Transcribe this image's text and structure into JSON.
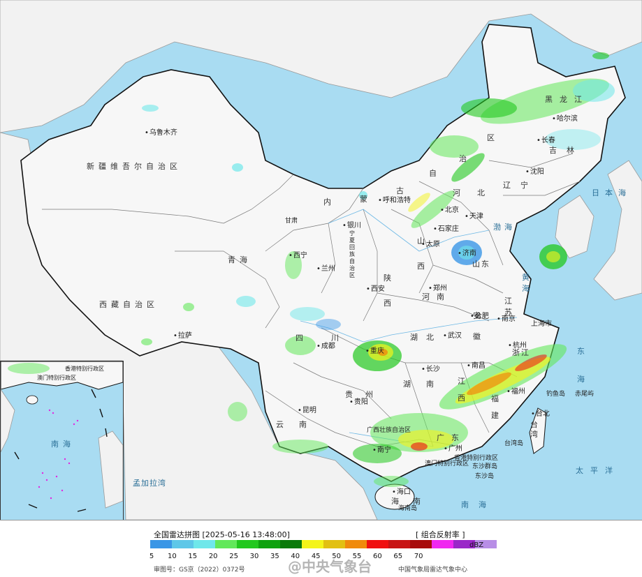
{
  "legend": {
    "title": "全国雷达拼图 [2025-05-16 13:48:00]",
    "product": "[ 组合反射率 ]",
    "unit": "dBZ",
    "tick_labels": [
      "5",
      "10",
      "15",
      "20",
      "25",
      "30",
      "35",
      "40",
      "45",
      "50",
      "55",
      "60",
      "65",
      "70"
    ],
    "colors": [
      "#3a96e6",
      "#5ec7e8",
      "#6fe7ea",
      "#62e85a",
      "#22c81e",
      "#0ea20e",
      "#0a7a0a",
      "#f4f41a",
      "#e2c012",
      "#f08a0c",
      "#f01010",
      "#c81414",
      "#a80c0c",
      "#f028f0",
      "#9a28c8",
      "#b88ee6"
    ],
    "approval_no": "审图号：GS京（2022）0372号",
    "provider": "中国气象局雷达气象中心",
    "watermark": "@中央气象台"
  },
  "labels": {
    "urumqi": "乌鲁木齐",
    "xinjiang": "新疆维吾尔自治区",
    "tibet": "西藏自治区",
    "lhasa": "拉萨",
    "qinghai": "青海",
    "xining": "西宁",
    "gansu": "甘肃",
    "lanzhou": "兰州",
    "ningxia": "宁夏回族自治区",
    "yinchuan": "银川",
    "inner_mongolia_1": "内",
    "inner_mongolia_2": "蒙",
    "inner_mongolia_3": "古",
    "inner_mongolia_4": "自",
    "inner_mongolia_5": "治",
    "inner_mongolia_6": "区",
    "hohhot": "呼和浩特",
    "heilongjiang": "黑龙江",
    "harbin": "哈尔滨",
    "jilin": "吉林",
    "changchun": "长春",
    "liaoning": "辽宁",
    "shenyang": "沈阳",
    "beijing": "北京",
    "tianjin": "天津",
    "hebei": "河北",
    "shijiazhuang": "石家庄",
    "shanxi": "山西",
    "taiyuan": "太原",
    "shandong": "山东",
    "jinan": "济南",
    "shaanxi": "陕西",
    "xian": "西安",
    "henan": "河南",
    "zhengzhou": "郑州",
    "sichuan": "四川",
    "chengdu": "成都",
    "chongqing": "重庆",
    "hubei": "湖北",
    "wuhan": "武汉",
    "anhui": "安徽",
    "hefei": "合肥",
    "jiangsu": "江苏",
    "nanjing": "南京",
    "shanghai": "上海市",
    "zhejiang": "浙江",
    "hangzhou": "杭州",
    "hunan": "湖南",
    "changsha": "长沙",
    "jiangxi": "江西",
    "nanchang": "南昌",
    "fujian": "福建",
    "fuzhou": "福州",
    "guizhou": "贵州",
    "guiyang": "贵阳",
    "yunnan": "云南",
    "kunming": "昆明",
    "guangxi": "广西壮族自治区",
    "nanning": "南宁",
    "guangdong": "广东",
    "guangzhou": "广州",
    "hongkong": "香港特别行政区",
    "macau": "澳门特别行政区",
    "hainan": "海南",
    "haikou": "海口",
    "hainan_island": "海南岛",
    "taiwan": "台湾",
    "taipei": "台北",
    "taiwan_island": "台湾岛",
    "diaoyu": "钓鱼岛",
    "chiwei": "赤尾屿",
    "dongsha": "东沙群岛",
    "dongsha_island": "东沙岛",
    "japan_sea": "日本海",
    "yellow_sea": "黄海",
    "east_sea": "东海",
    "pacific": "太平洋",
    "south_sea": "南海",
    "bohai": "渤海",
    "bengal": "孟加拉湾",
    "inset_south_sea": "南海",
    "inset_hk": "香港特别行政区",
    "inset_macau": "澳门特别行政区"
  }
}
